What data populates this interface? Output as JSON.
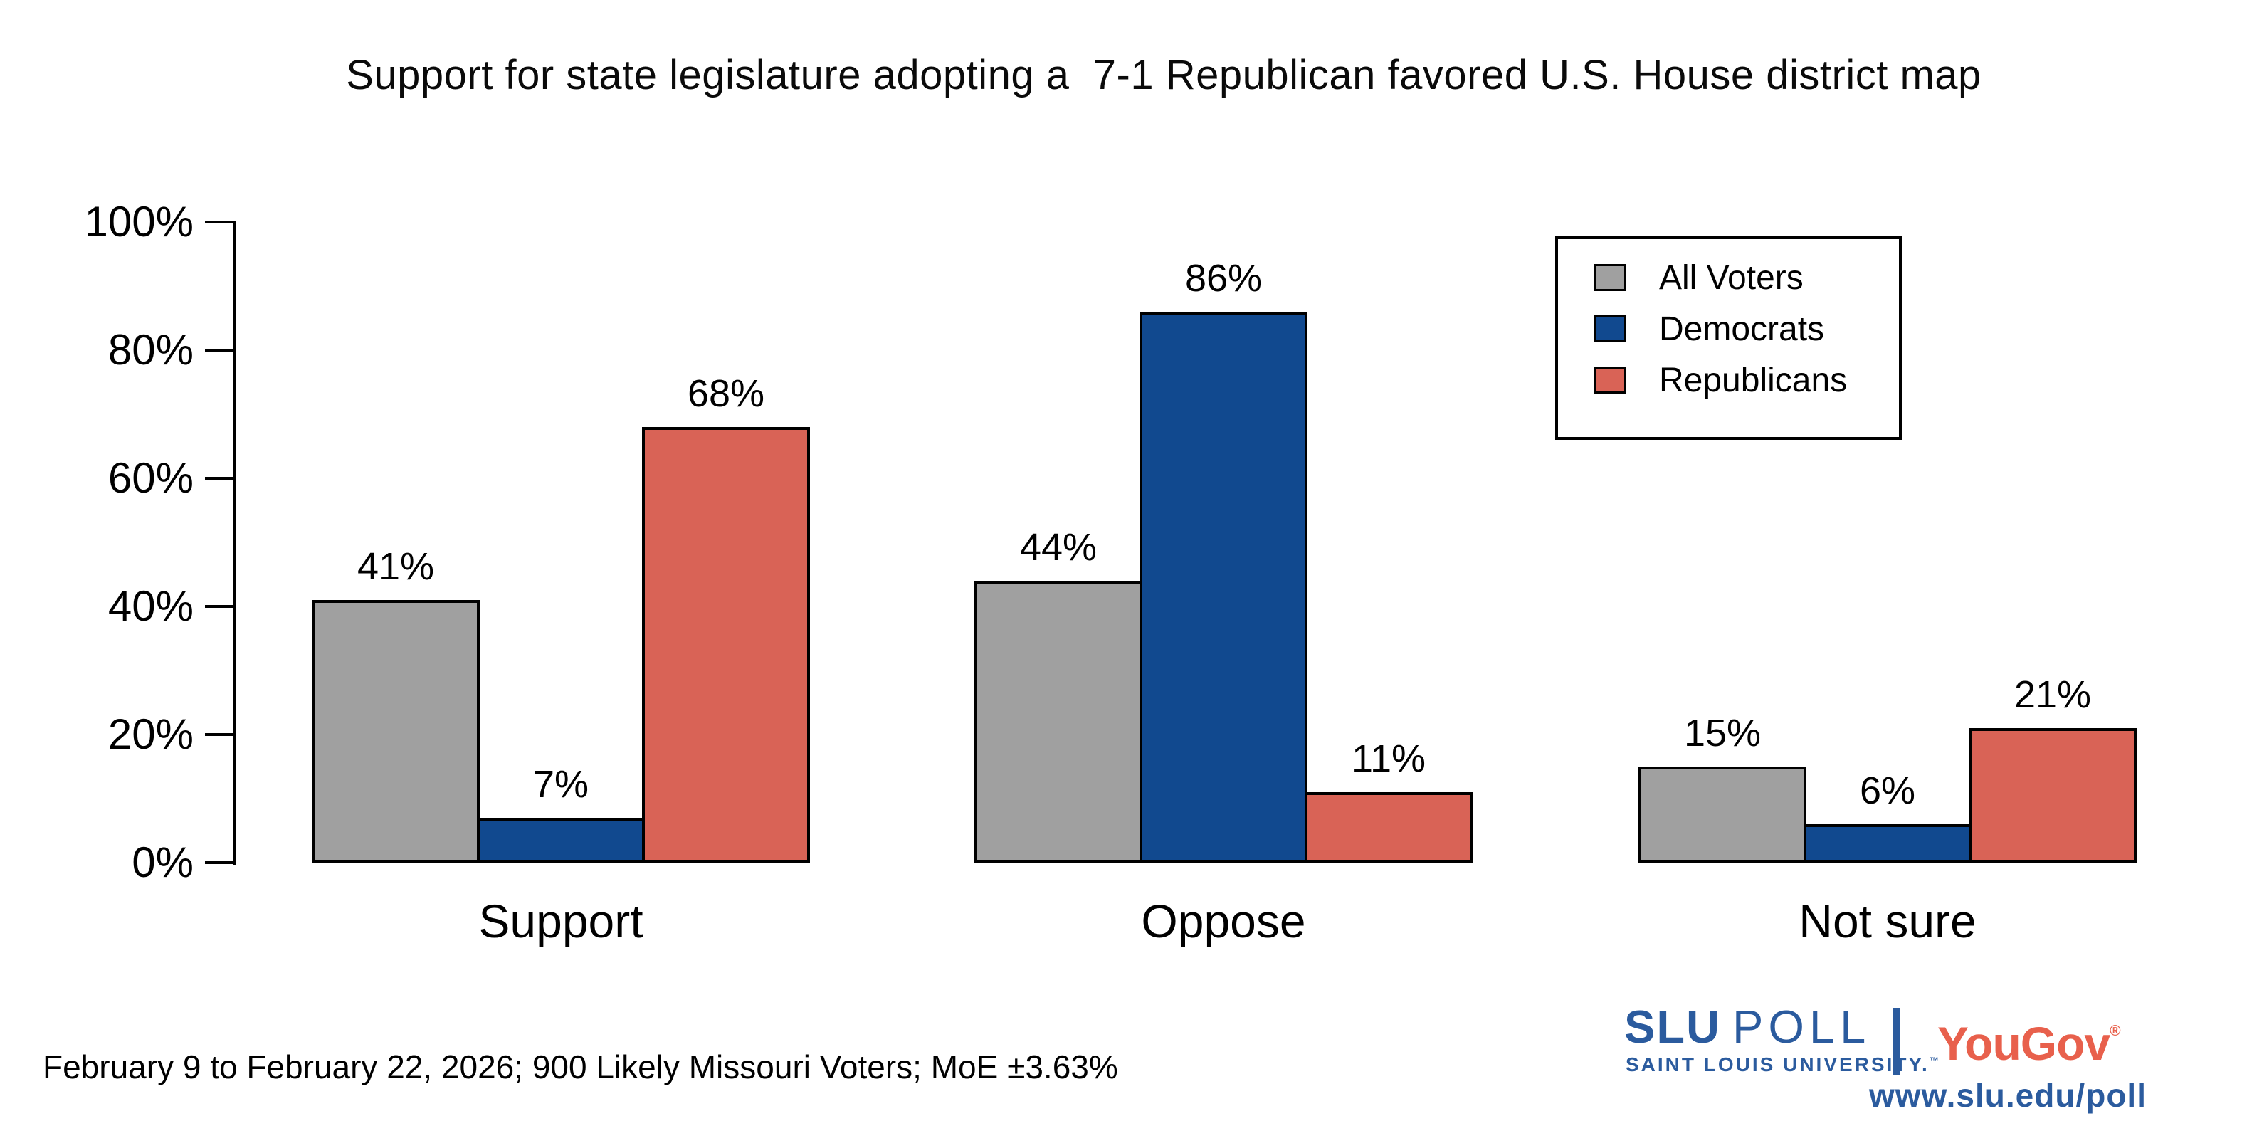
{
  "title": "Support for state legislature adopting a  7-1 Republican favored U.S. House district map",
  "chart_data": {
    "type": "bar",
    "categories": [
      "Support",
      "Oppose",
      "Not sure"
    ],
    "series": [
      {
        "name": "All Voters",
        "color": "#A0A0A0",
        "values": [
          41,
          44,
          15
        ]
      },
      {
        "name": "Democrats",
        "color": "#11498F",
        "values": [
          7,
          86,
          6
        ]
      },
      {
        "name": "Republicans",
        "color": "#D96356",
        "values": [
          68,
          11,
          21
        ]
      }
    ],
    "value_labels": [
      [
        "41%",
        "44%",
        "15%"
      ],
      [
        "7%",
        "86%",
        "6%"
      ],
      [
        "68%",
        "11%",
        "21%"
      ]
    ],
    "value_suffix": "%",
    "ylim": [
      0,
      100
    ],
    "yticks": [
      0,
      20,
      40,
      60,
      80,
      100
    ],
    "ytick_labels": [
      "0%",
      "20%",
      "40%",
      "60%",
      "80%",
      "100%"
    ],
    "grid": false,
    "bar_border_color": "#000000",
    "legend_position": "top-right"
  },
  "footer": {
    "note": "February 9 to February 22, 2026; 900 Likely Missouri Voters; MoE ±3.63%"
  },
  "branding": {
    "slu_poll": "SLU",
    "slu_poll2": "POLL",
    "slu_university": "SAINT LOUIS UNIVERSITY.",
    "slu_tm": "™",
    "yougov": "YouGov",
    "yougov_reg": "®",
    "url": "www.slu.edu/poll",
    "slu_blue": "#2B5B9E",
    "yougov_red": "#E8604C"
  }
}
